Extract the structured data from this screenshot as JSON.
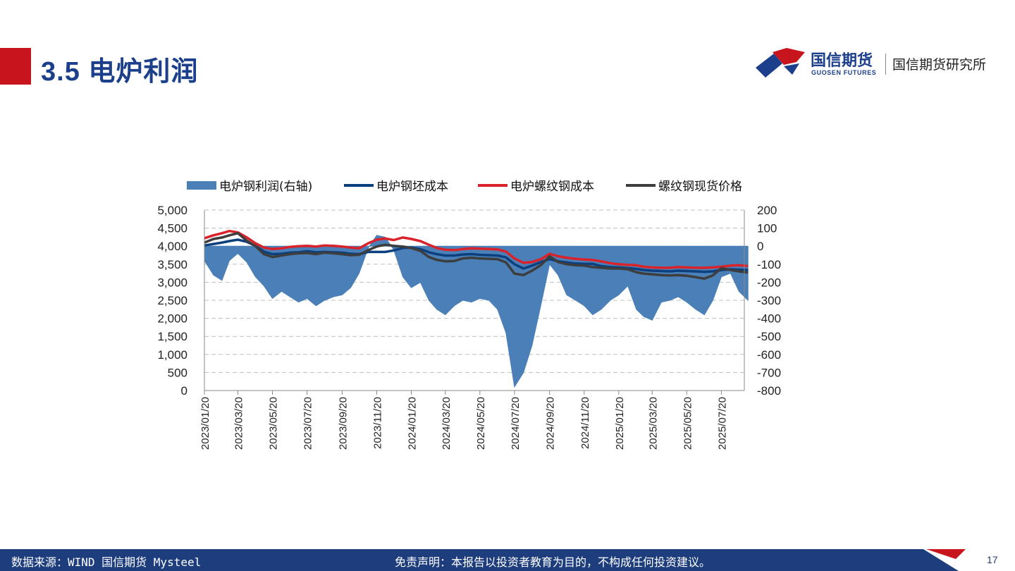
{
  "header": {
    "title": "3.5 电炉利润",
    "logo_cn": "国信期货",
    "logo_en": "GUOSEN FUTURES",
    "institute": "国信期货研究所"
  },
  "footer": {
    "source": "数据来源：WIND 国信期货 Mysteel",
    "disclaimer": "免责声明：本报告以投资者教育为目的，不构成任何投资建议。",
    "page": "17"
  },
  "colors": {
    "accent_red": "#c8151d",
    "brand_blue": "#1b3f8b",
    "footer_blue": "#1d3d7c",
    "profit_area": "#4a80b7",
    "billet_cost": "#0b3f7e",
    "rebar_cost": "#d9222a",
    "rebar_spot": "#3d3d3d"
  },
  "chart_data": {
    "type": "line",
    "x_ticks": [
      "2023/01/20",
      "2023/03/20",
      "2023/05/20",
      "2023/07/20",
      "2023/09/20",
      "2023/11/20",
      "2024/01/20",
      "2024/03/20",
      "2024/05/20",
      "2024/07/20",
      "2024/09/20",
      "2024/11/20",
      "2025/01/20",
      "2025/03/20",
      "2025/05/20",
      "2025/07/20"
    ],
    "y_left": {
      "min": 0,
      "max": 5000,
      "step": 500,
      "ticks": [
        "0",
        "500",
        "1,000",
        "1,500",
        "2,000",
        "2,500",
        "3,000",
        "3,500",
        "4,000",
        "4,500",
        "5,000"
      ]
    },
    "y_right": {
      "min": -800,
      "max": 200,
      "step": 100,
      "ticks": [
        "-800",
        "-700",
        "-600",
        "-500",
        "-400",
        "-300",
        "-200",
        "-100",
        "0",
        "100",
        "200"
      ]
    },
    "grid": true,
    "legend_position": "top",
    "x": [
      "2023/01/20",
      "2023/02/05",
      "2023/02/20",
      "2023/03/05",
      "2023/03/20",
      "2023/04/05",
      "2023/04/20",
      "2023/05/05",
      "2023/05/20",
      "2023/06/05",
      "2023/06/20",
      "2023/07/05",
      "2023/07/20",
      "2023/08/05",
      "2023/08/20",
      "2023/09/05",
      "2023/09/20",
      "2023/10/05",
      "2023/10/20",
      "2023/11/05",
      "2023/11/20",
      "2023/12/05",
      "2023/12/20",
      "2024/01/05",
      "2024/01/20",
      "2024/02/05",
      "2024/02/20",
      "2024/03/05",
      "2024/03/20",
      "2024/04/05",
      "2024/04/20",
      "2024/05/05",
      "2024/05/20",
      "2024/06/05",
      "2024/06/20",
      "2024/07/05",
      "2024/07/20",
      "2024/08/05",
      "2024/08/20",
      "2024/09/05",
      "2024/09/20",
      "2024/10/05",
      "2024/10/20",
      "2024/11/05",
      "2024/11/20",
      "2024/12/05",
      "2024/12/20",
      "2025/01/05",
      "2025/01/20",
      "2025/02/05",
      "2025/02/20",
      "2025/03/05",
      "2025/03/20",
      "2025/04/05",
      "2025/04/20",
      "2025/05/05",
      "2025/05/20",
      "2025/06/05",
      "2025/06/20",
      "2025/07/05",
      "2025/07/20",
      "2025/08/05",
      "2025/08/20",
      "2025/09/05"
    ],
    "series": [
      {
        "name": "电炉钢利润(右轴)",
        "type": "area",
        "axis": "right",
        "values": [
          -80,
          -160,
          -190,
          -80,
          -40,
          -90,
          -170,
          -220,
          -290,
          -250,
          -280,
          -310,
          -290,
          -330,
          -300,
          -280,
          -270,
          -230,
          -150,
          -10,
          60,
          50,
          -20,
          -170,
          -230,
          -200,
          -300,
          -350,
          -380,
          -330,
          -300,
          -310,
          -290,
          -300,
          -350,
          -480,
          -780,
          -700,
          -550,
          -320,
          -100,
          -160,
          -270,
          -300,
          -330,
          -380,
          -350,
          -300,
          -270,
          -220,
          -350,
          -390,
          -410,
          -310,
          -300,
          -280,
          -310,
          -350,
          -380,
          -300,
          -170,
          -150,
          -250,
          -300
        ]
      },
      {
        "name": "电炉钢坯成本",
        "type": "line",
        "axis": "left",
        "values": [
          4020,
          4060,
          4100,
          4140,
          4180,
          4120,
          4010,
          3850,
          3780,
          3790,
          3820,
          3830,
          3860,
          3830,
          3840,
          3830,
          3820,
          3790,
          3780,
          3840,
          3840,
          3840,
          3880,
          3950,
          3960,
          3920,
          3830,
          3780,
          3740,
          3740,
          3770,
          3780,
          3760,
          3750,
          3740,
          3690,
          3500,
          3380,
          3460,
          3560,
          3640,
          3580,
          3550,
          3520,
          3510,
          3510,
          3450,
          3420,
          3410,
          3390,
          3370,
          3340,
          3320,
          3310,
          3300,
          3320,
          3310,
          3300,
          3290,
          3300,
          3340,
          3360,
          3350,
          3340
        ]
      },
      {
        "name": "电炉螺纹钢成本",
        "type": "line",
        "axis": "left",
        "values": [
          4220,
          4300,
          4360,
          4420,
          4380,
          4240,
          4080,
          3960,
          3920,
          3940,
          3980,
          4000,
          4010,
          3990,
          4020,
          4010,
          3990,
          3960,
          3940,
          4080,
          4180,
          4210,
          4170,
          4240,
          4200,
          4140,
          4040,
          3950,
          3900,
          3890,
          3920,
          3940,
          3930,
          3920,
          3910,
          3850,
          3660,
          3540,
          3560,
          3640,
          3790,
          3720,
          3680,
          3650,
          3630,
          3620,
          3580,
          3530,
          3500,
          3480,
          3470,
          3430,
          3410,
          3400,
          3400,
          3420,
          3410,
          3400,
          3400,
          3410,
          3430,
          3460,
          3470,
          3450
        ]
      },
      {
        "name": "螺纹钢现货价格",
        "type": "line",
        "axis": "left",
        "values": [
          4100,
          4200,
          4240,
          4300,
          4360,
          4150,
          4000,
          3780,
          3700,
          3740,
          3780,
          3800,
          3810,
          3780,
          3820,
          3800,
          3780,
          3750,
          3760,
          3890,
          3990,
          4040,
          4010,
          3990,
          3950,
          3870,
          3700,
          3620,
          3580,
          3590,
          3660,
          3680,
          3660,
          3650,
          3640,
          3550,
          3240,
          3200,
          3320,
          3480,
          3720,
          3560,
          3500,
          3470,
          3460,
          3420,
          3400,
          3380,
          3380,
          3360,
          3280,
          3240,
          3220,
          3200,
          3190,
          3200,
          3180,
          3140,
          3100,
          3190,
          3390,
          3340,
          3300,
          3270
        ]
      }
    ]
  }
}
